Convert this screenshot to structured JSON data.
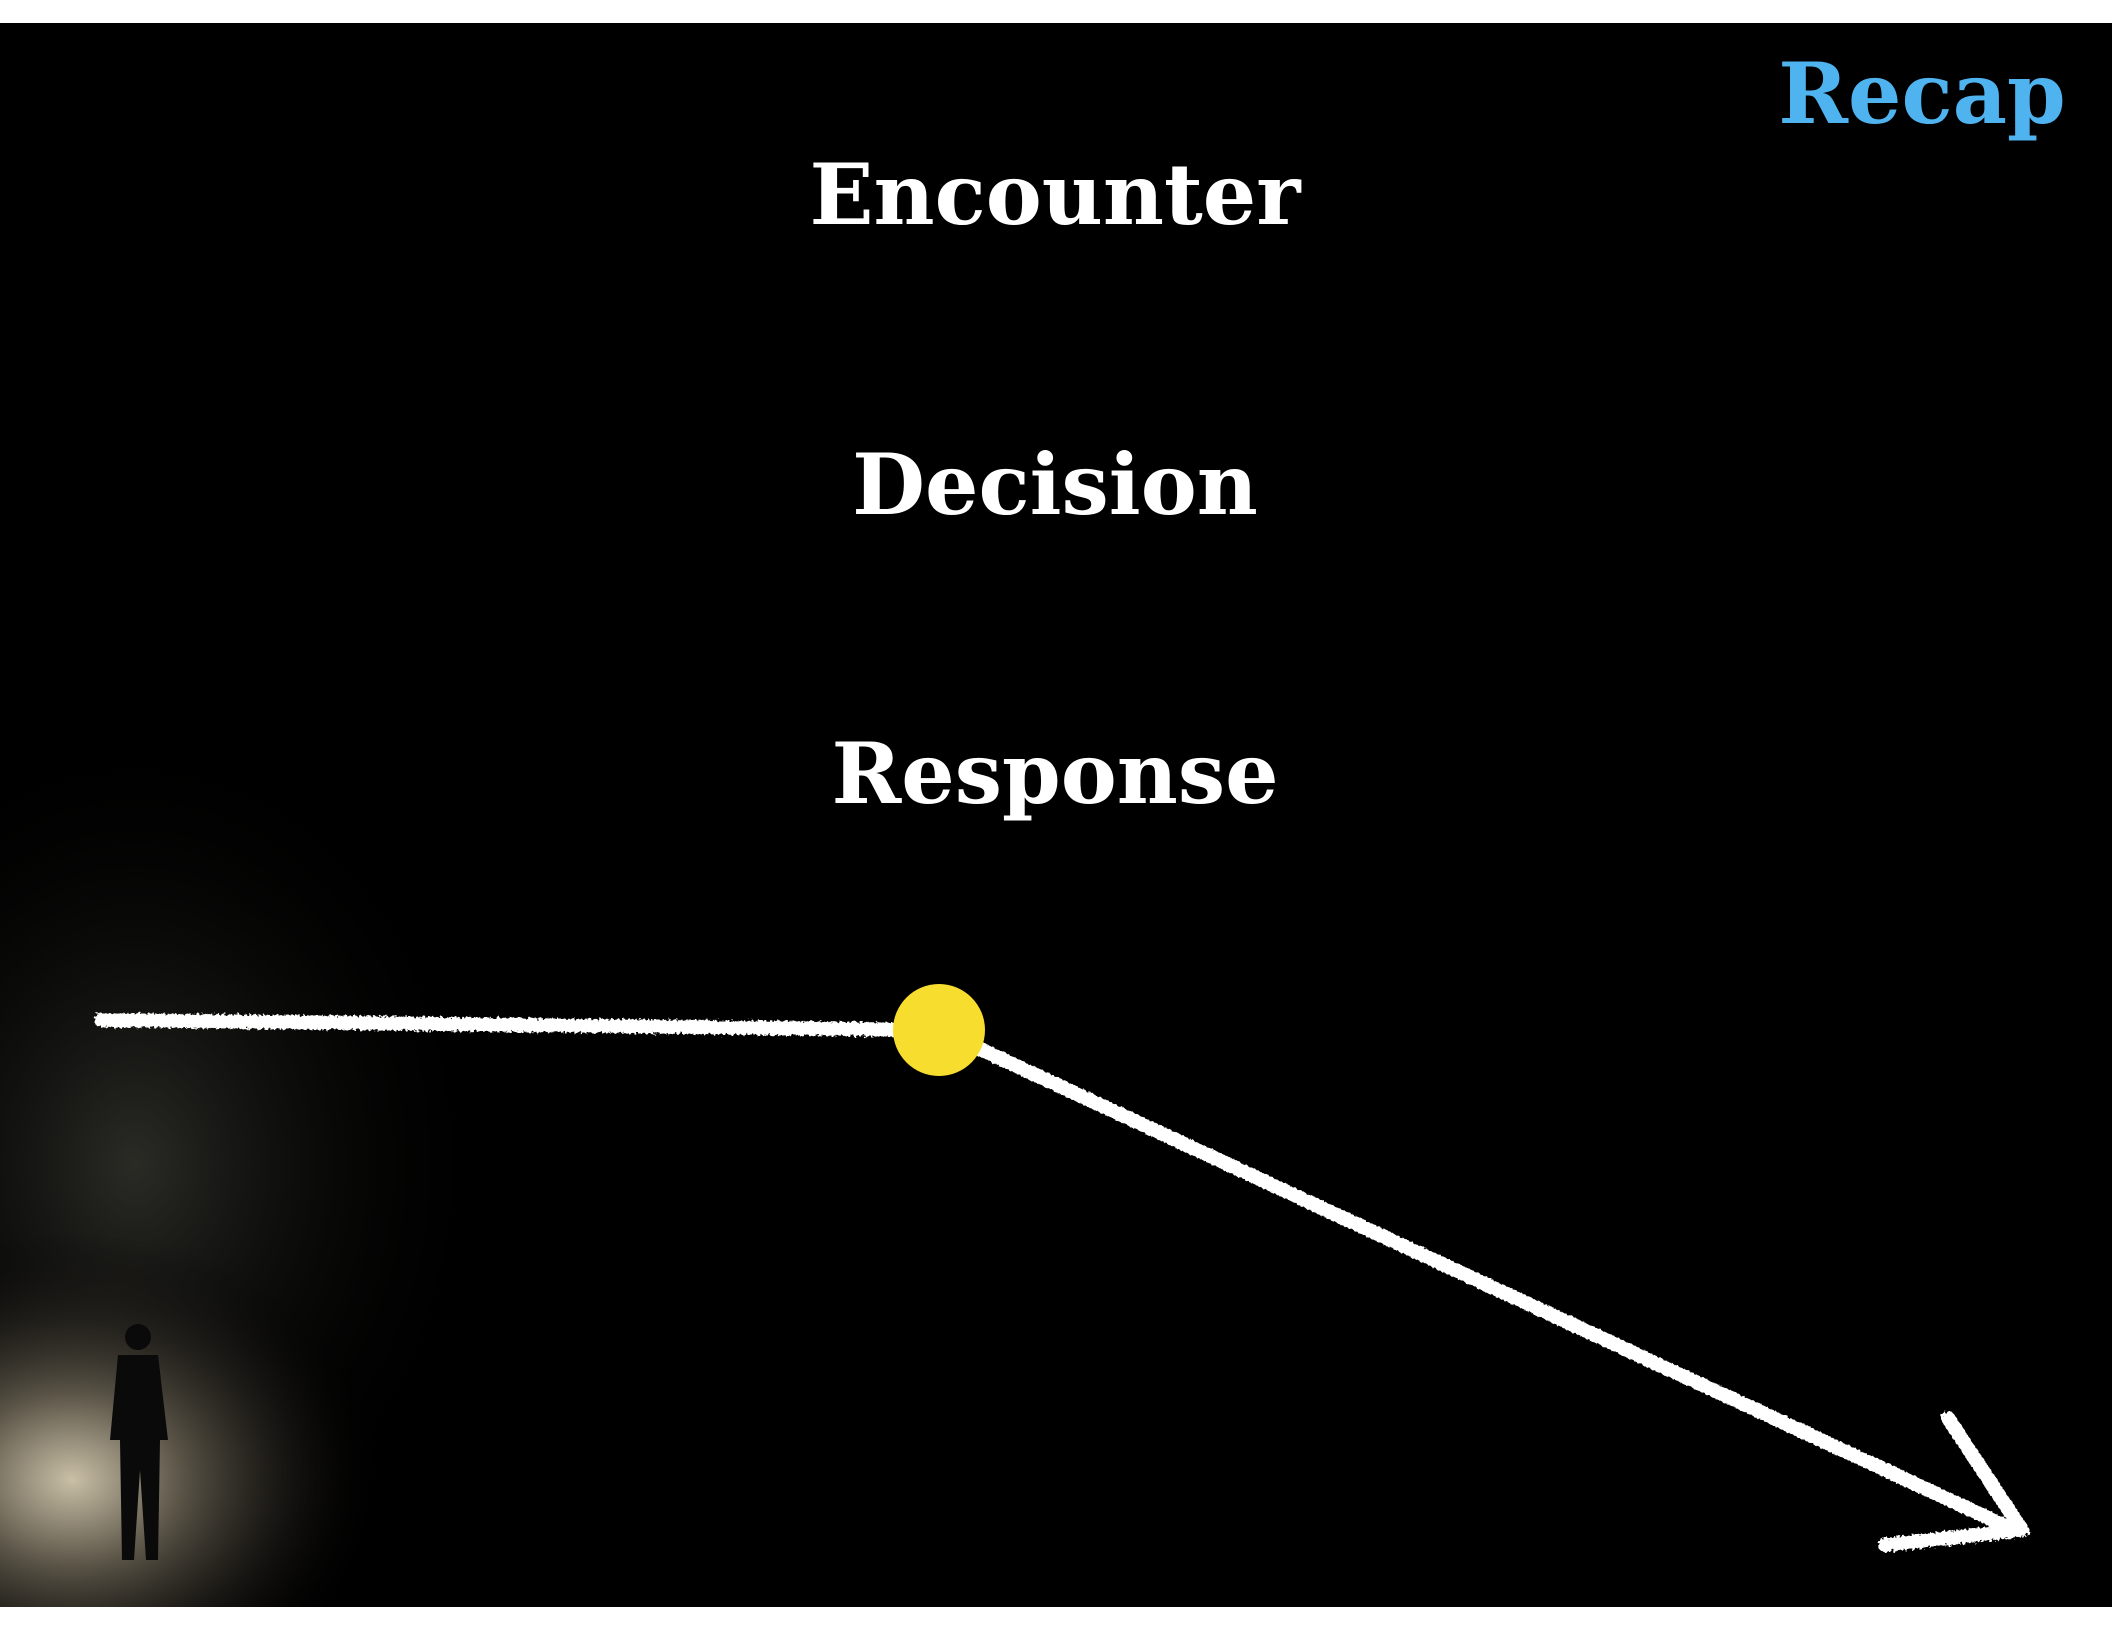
{
  "header": {
    "title": "Recap"
  },
  "items": [
    "Encounter",
    "Decision",
    "Response"
  ]
}
